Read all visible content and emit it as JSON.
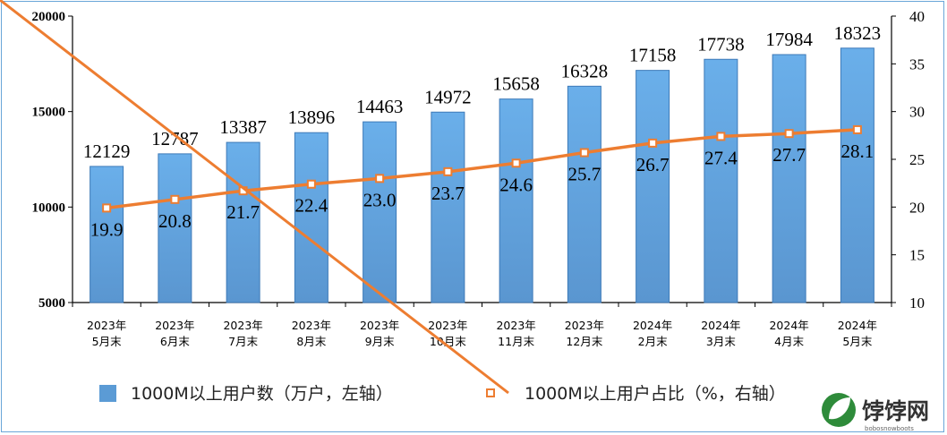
{
  "chart_data": {
    "type": "bar",
    "categories": [
      [
        "2023年",
        "5月末"
      ],
      [
        "2023年",
        "6月末"
      ],
      [
        "2023年",
        "7月末"
      ],
      [
        "2023年",
        "8月末"
      ],
      [
        "2023年",
        "9月末"
      ],
      [
        "2023年",
        "10月末"
      ],
      [
        "2023年",
        "11月末"
      ],
      [
        "2023年",
        "12月末"
      ],
      [
        "2024年",
        "2月末"
      ],
      [
        "2024年",
        "3月末"
      ],
      [
        "2024年",
        "4月末"
      ],
      [
        "2024年",
        "5月末"
      ]
    ],
    "series": [
      {
        "name": "1000M以上用户数（万户，左轴）",
        "type": "bar",
        "axis": "left",
        "color": "#5b9bd5",
        "values": [
          12129,
          12787,
          13387,
          13896,
          14463,
          14972,
          15658,
          16328,
          17158,
          17738,
          17984,
          18323
        ]
      },
      {
        "name": "1000M以上用户占比（%，右轴）",
        "type": "line",
        "axis": "right",
        "color": "#ed7d31",
        "values": [
          19.9,
          20.8,
          21.7,
          22.4,
          23.0,
          23.7,
          24.6,
          25.7,
          26.7,
          27.4,
          27.7,
          28.1
        ]
      }
    ],
    "y_left": {
      "min": 5000,
      "max": 20000,
      "ticks": [
        5000,
        10000,
        15000,
        20000
      ]
    },
    "y_right": {
      "min": 10,
      "max": 40,
      "ticks": [
        10,
        15,
        20,
        25,
        30,
        35,
        40
      ]
    },
    "legend_position": "bottom",
    "grid": false
  },
  "watermark": {
    "text": "饽饽网",
    "sub": "bobosnowboots"
  }
}
